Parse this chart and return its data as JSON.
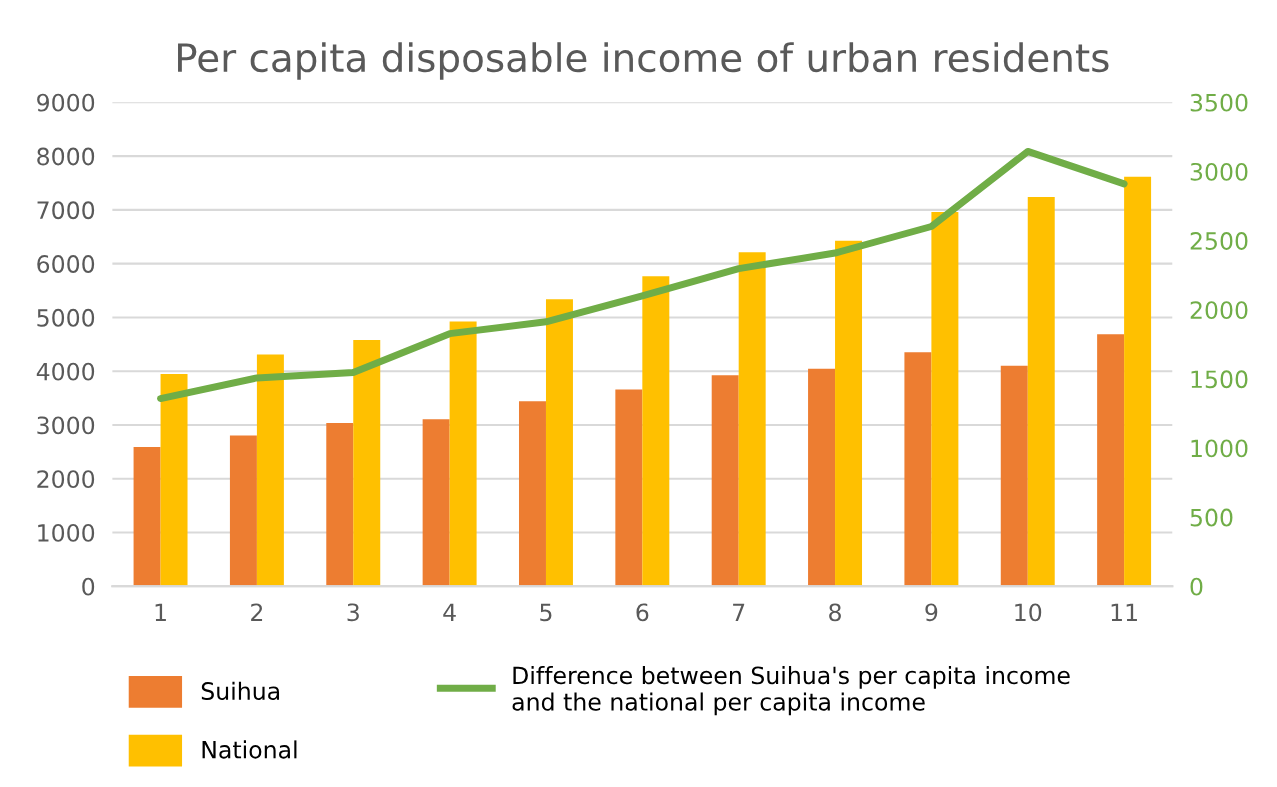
{
  "chart_data": {
    "type": "bar",
    "title": "Per capita disposable income of urban residents",
    "categories": [
      "1",
      "2",
      "3",
      "4",
      "5",
      "6",
      "7",
      "8",
      "9",
      "10",
      "11"
    ],
    "series": [
      {
        "name": "Suihua",
        "color": "#ed7d31",
        "values": [
          2590,
          2805,
          3035,
          3105,
          3440,
          3660,
          3925,
          4047,
          4352,
          4100,
          4687
        ]
      },
      {
        "name": "National",
        "color": "#ffc000",
        "values": [
          3950,
          4310,
          4580,
          4925,
          5340,
          5765,
          6210,
          6425,
          6960,
          7240,
          7615
        ]
      },
      {
        "name": "Difference between Suihua's per capita income and the national per capita income",
        "color": "#70ad47",
        "type": "line",
        "axis": "y2",
        "values": [
          1358,
          1507,
          1546,
          1827,
          1913,
          2100,
          2297,
          2410,
          2602,
          3145,
          2910
        ]
      }
    ],
    "ylim": [
      0,
      9000
    ],
    "yticks": [
      0,
      1000,
      2000,
      3000,
      4000,
      5000,
      6000,
      7000,
      8000,
      9000
    ],
    "y2lim": [
      0,
      3500
    ],
    "y2ticks": [
      0,
      500,
      1000,
      1500,
      2000,
      2500,
      3000,
      3500
    ],
    "grid": "y",
    "legend": "bottom"
  }
}
